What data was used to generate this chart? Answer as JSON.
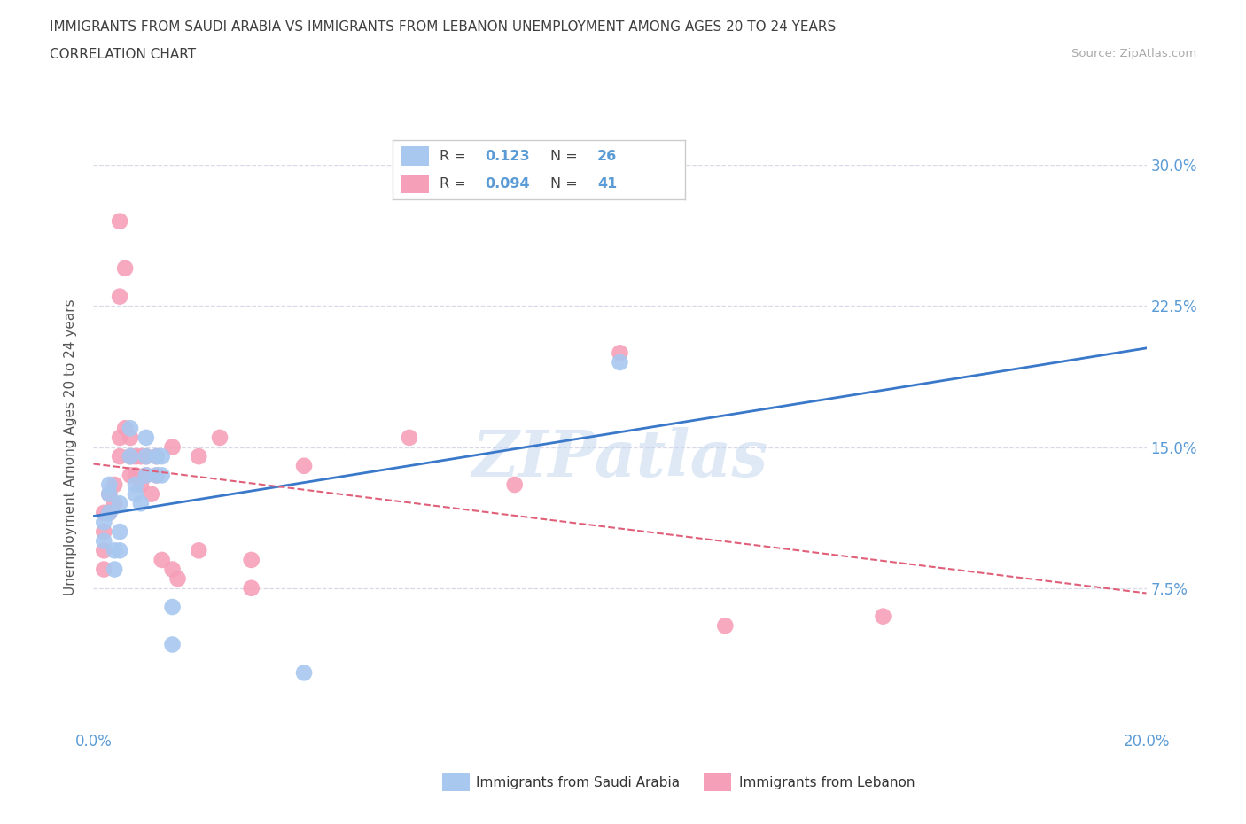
{
  "title_line1": "IMMIGRANTS FROM SAUDI ARABIA VS IMMIGRANTS FROM LEBANON UNEMPLOYMENT AMONG AGES 20 TO 24 YEARS",
  "title_line2": "CORRELATION CHART",
  "source_text": "Source: ZipAtlas.com",
  "ylabel": "Unemployment Among Ages 20 to 24 years",
  "xlim": [
    0.0,
    0.2
  ],
  "ylim": [
    0.0,
    0.3
  ],
  "yticks": [
    0.075,
    0.15,
    0.225,
    0.3
  ],
  "yticklabels": [
    "7.5%",
    "15.0%",
    "22.5%",
    "30.0%"
  ],
  "xtick_positions": [
    0.0,
    0.05,
    0.1,
    0.15,
    0.2
  ],
  "xticklabels_show": [
    "0.0%",
    "",
    "",
    "",
    "20.0%"
  ],
  "watermark": "ZIPatlas",
  "series1_color": "#a8c8f0",
  "series2_color": "#f5a0b8",
  "trend1_color": "#3a78c9",
  "trend2_color": "#e0607a",
  "grid_color": "#d8d8e8",
  "background_color": "#ffffff",
  "title_color": "#404040",
  "axis_label_color": "#5b9bd5",
  "legend_r1_val": "0.123",
  "legend_n1_val": "26",
  "legend_r2_val": "0.094",
  "legend_n2_val": "41",
  "bottom_label1": "Immigrants from Saudi Arabia",
  "bottom_label2": "Immigrants from Lebanon",
  "saudi_x": [
    0.002,
    0.002,
    0.003,
    0.003,
    0.003,
    0.004,
    0.004,
    0.005,
    0.005,
    0.005,
    0.007,
    0.007,
    0.008,
    0.008,
    0.009,
    0.01,
    0.01,
    0.01,
    0.012,
    0.012,
    0.013,
    0.013,
    0.015,
    0.015,
    0.04,
    0.1
  ],
  "saudi_y": [
    0.1,
    0.11,
    0.115,
    0.125,
    0.13,
    0.095,
    0.085,
    0.12,
    0.105,
    0.095,
    0.16,
    0.145,
    0.13,
    0.125,
    0.12,
    0.155,
    0.145,
    0.135,
    0.145,
    0.135,
    0.145,
    0.135,
    0.065,
    0.045,
    0.03,
    0.195
  ],
  "lebanon_x": [
    0.002,
    0.002,
    0.002,
    0.002,
    0.003,
    0.003,
    0.004,
    0.004,
    0.005,
    0.005,
    0.005,
    0.005,
    0.006,
    0.006,
    0.007,
    0.007,
    0.007,
    0.008,
    0.008,
    0.009,
    0.009,
    0.01,
    0.01,
    0.011,
    0.012,
    0.012,
    0.013,
    0.015,
    0.015,
    0.016,
    0.02,
    0.02,
    0.024,
    0.03,
    0.03,
    0.04,
    0.06,
    0.08,
    0.1,
    0.12,
    0.15
  ],
  "lebanon_y": [
    0.105,
    0.115,
    0.095,
    0.085,
    0.125,
    0.115,
    0.13,
    0.12,
    0.27,
    0.23,
    0.155,
    0.145,
    0.245,
    0.16,
    0.155,
    0.145,
    0.135,
    0.145,
    0.135,
    0.145,
    0.13,
    0.145,
    0.135,
    0.125,
    0.145,
    0.135,
    0.09,
    0.15,
    0.085,
    0.08,
    0.145,
    0.095,
    0.155,
    0.09,
    0.075,
    0.14,
    0.155,
    0.13,
    0.2,
    0.055,
    0.06
  ]
}
